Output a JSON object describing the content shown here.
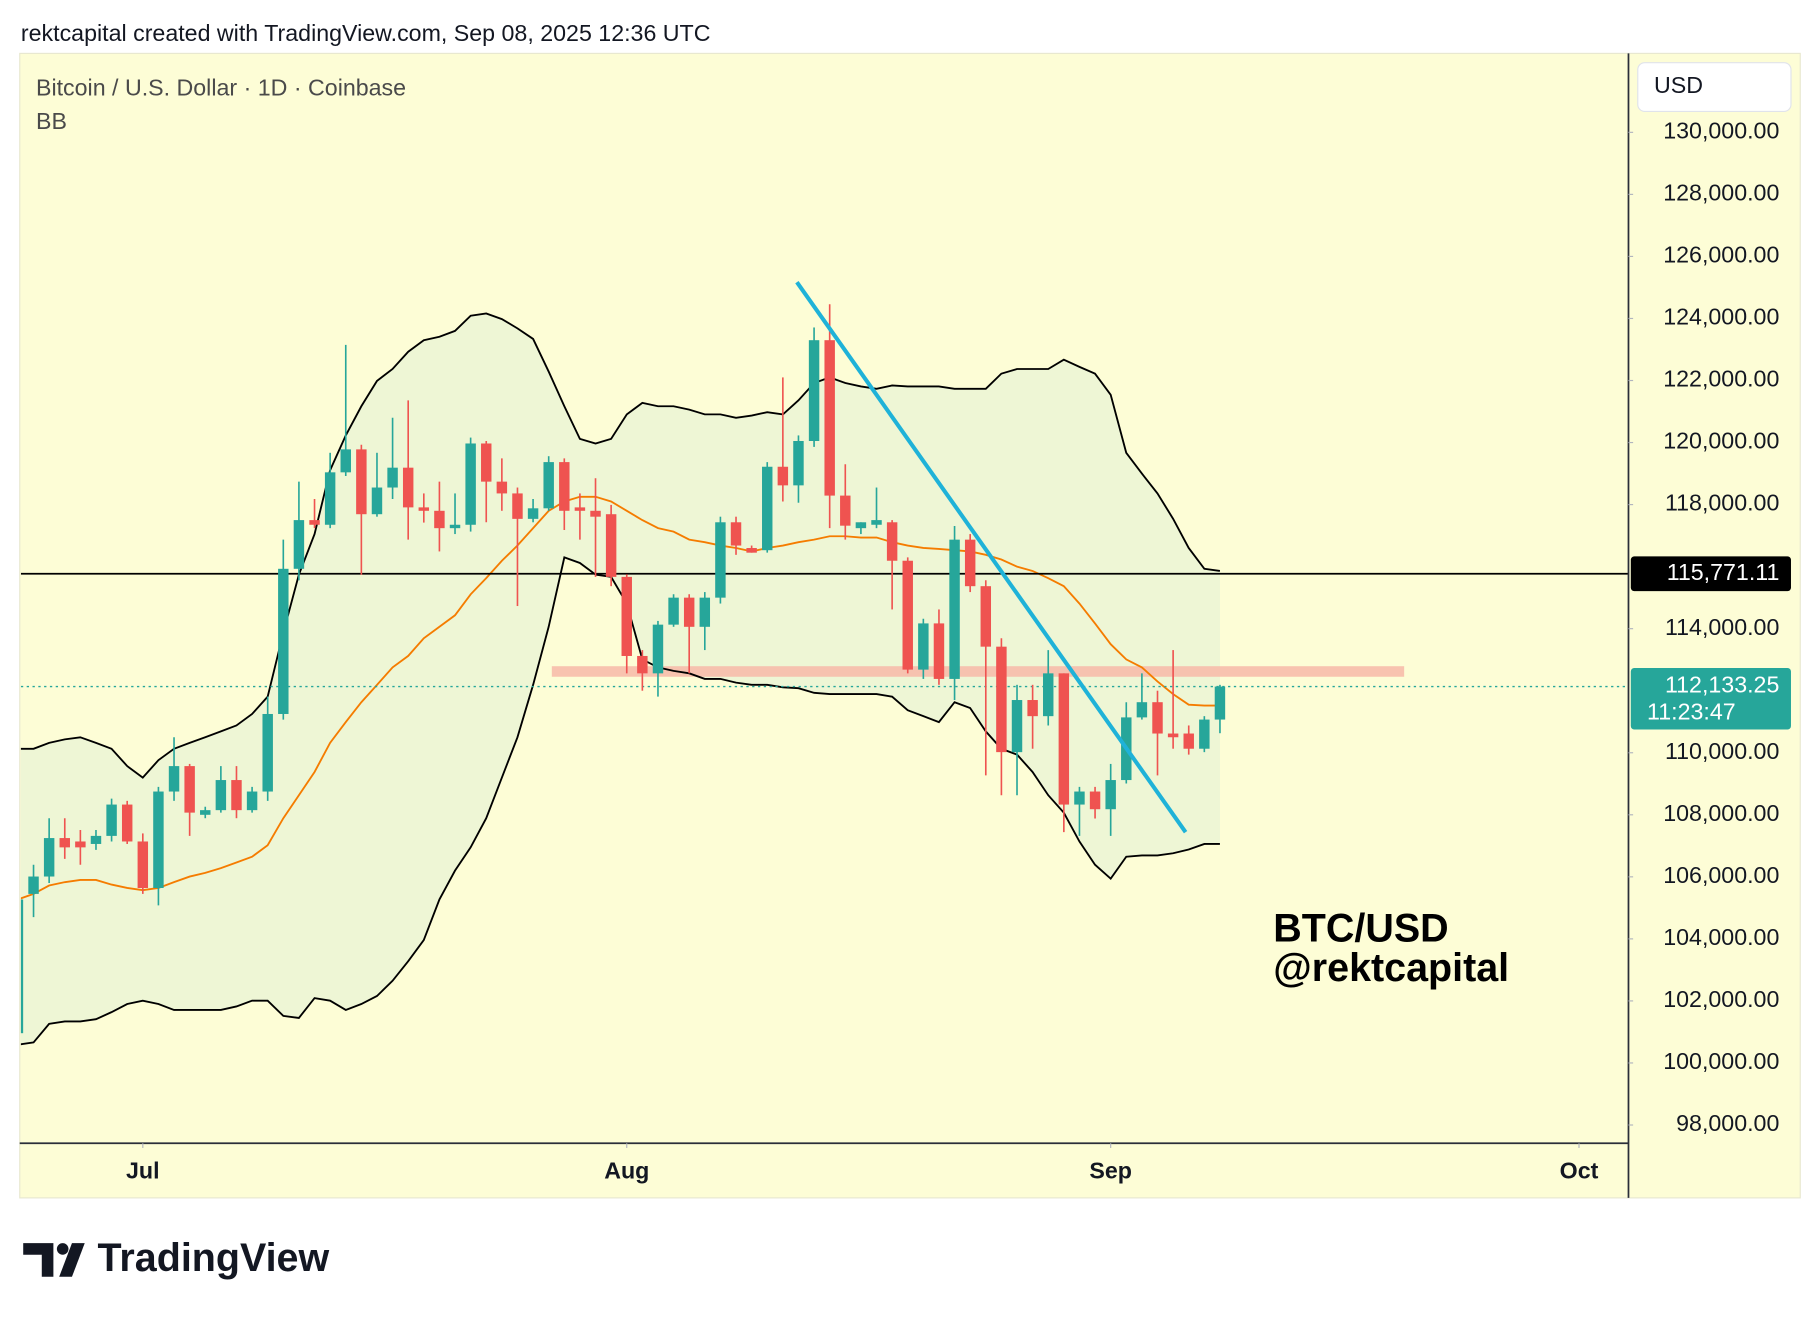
{
  "header": "rektcapital created with TradingView.com, Sep 08, 2025 12:36 UTC",
  "brand": "TradingView",
  "chart_data": {
    "type": "candlestick",
    "title": "Bitcoin / U.S. Dollar · 1D · Coinbase",
    "currency": "USD",
    "up_color": "#26a69a",
    "down_color": "#ef5350",
    "xlim": [
      -7.81,
      95.17
    ],
    "xticks": [
      {
        "value": 0,
        "label": "Jul"
      },
      {
        "value": 31,
        "label": "Aug"
      },
      {
        "value": 62,
        "label": "Sep"
      },
      {
        "value": 92,
        "label": "Oct"
      }
    ],
    "ylim": [
      97410,
      132545
    ],
    "yticks": [
      {
        "value": 130000,
        "label": "130,000.00"
      },
      {
        "value": 128000,
        "label": "128,000.00"
      },
      {
        "value": 126000,
        "label": "126,000.00"
      },
      {
        "value": 124000,
        "label": "124,000.00"
      },
      {
        "value": 122000,
        "label": "122,000.00"
      },
      {
        "value": 120000,
        "label": "120,000.00"
      },
      {
        "value": 118000,
        "label": "118,000.00"
      },
      {
        "value": 114000,
        "label": "114,000.00"
      },
      {
        "value": 110000,
        "label": "110,000.00"
      },
      {
        "value": 108000,
        "label": "108,000.00"
      },
      {
        "value": 106000,
        "label": "106,000.00"
      },
      {
        "value": 104000,
        "label": "104,000.00"
      },
      {
        "value": 102000,
        "label": "102,000.00"
      },
      {
        "value": 100000,
        "label": "100,000.00"
      },
      {
        "value": 98000,
        "label": "98,000.00"
      }
    ],
    "x": [
      -8,
      -7,
      -6,
      -5,
      -4,
      -3,
      -2,
      -1,
      0,
      1,
      2,
      3,
      4,
      5,
      6,
      7,
      8,
      9,
      10,
      11,
      12,
      13,
      14,
      15,
      16,
      17,
      18,
      19,
      20,
      21,
      22,
      23,
      24,
      25,
      26,
      27,
      28,
      29,
      30,
      31,
      32,
      33,
      34,
      35,
      36,
      37,
      38,
      39,
      40,
      41,
      42,
      43,
      44,
      45,
      46,
      47,
      48,
      49,
      50,
      51,
      52,
      53,
      54,
      55,
      56,
      57,
      58,
      59,
      60,
      61,
      62,
      63,
      64,
      65,
      66,
      67,
      68,
      69
    ],
    "open": [
      100960,
      105450,
      106010,
      107250,
      107140,
      107060,
      107320,
      108330,
      107140,
      105640,
      108750,
      109570,
      108000,
      108150,
      109120,
      108150,
      108750,
      111250,
      115930,
      117500,
      117350,
      119040,
      119780,
      117690,
      118550,
      119190,
      117910,
      117800,
      117240,
      117350,
      119970,
      118740,
      118360,
      117540,
      117880,
      119370,
      117910,
      117800,
      117690,
      115670,
      113120,
      112560,
      114130,
      115000,
      114060,
      115000,
      117430,
      116600,
      116530,
      119220,
      118620,
      120050,
      123300,
      118290,
      117240,
      117350,
      117430,
      116190,
      112680,
      114170,
      112380,
      116870,
      115370,
      113420,
      110020,
      111700,
      111180,
      112560,
      108330,
      108750,
      108180,
      109120,
      111140,
      111630,
      110620,
      110620,
      110130,
      111070
    ],
    "high": [
      105450,
      106390,
      107890,
      107890,
      107510,
      107510,
      108520,
      108450,
      107400,
      108900,
      110500,
      109640,
      108260,
      109570,
      109570,
      108900,
      111810,
      116870,
      118740,
      118180,
      119670,
      123150,
      119930,
      119670,
      120800,
      121360,
      118360,
      118740,
      118360,
      120160,
      120050,
      119490,
      118550,
      118180,
      119560,
      119490,
      118360,
      118850,
      117990,
      115750,
      113310,
      114250,
      115110,
      115110,
      115180,
      117610,
      117610,
      116680,
      119370,
      122100,
      120230,
      123710,
      124460,
      119300,
      117430,
      118550,
      117500,
      116300,
      114320,
      114620,
      117310,
      117050,
      115560,
      113690,
      112190,
      112190,
      113310,
      112560,
      108900,
      108900,
      109640,
      111630,
      112560,
      112000,
      113310,
      110880,
      111180,
      112190
    ],
    "low": [
      99900,
      104700,
      105800,
      106580,
      106390,
      106870,
      107140,
      107060,
      105450,
      105080,
      108450,
      107320,
      107890,
      108070,
      107890,
      108070,
      108450,
      111070,
      115560,
      117240,
      117240,
      118920,
      115740,
      117610,
      118180,
      116870,
      117420,
      116490,
      117050,
      117130,
      117430,
      117800,
      114730,
      117430,
      117800,
      117180,
      116870,
      115670,
      115370,
      112560,
      112000,
      111810,
      114060,
      112560,
      113310,
      114810,
      116380,
      116450,
      116450,
      118100,
      118060,
      119860,
      117240,
      116870,
      117050,
      117240,
      114620,
      112560,
      112380,
      112190,
      111700,
      115180,
      109270,
      108630,
      108630,
      110130,
      110880,
      107440,
      107320,
      107880,
      107320,
      109010,
      111070,
      109270,
      110130,
      109940,
      110020,
      110630
    ],
    "close": [
      105270,
      106010,
      107250,
      106950,
      106950,
      107320,
      108330,
      107140,
      105640,
      108750,
      109570,
      108070,
      108150,
      109120,
      108150,
      108750,
      111250,
      115930,
      117500,
      117350,
      119040,
      119780,
      117690,
      118550,
      119190,
      117910,
      117800,
      117240,
      117350,
      119970,
      118740,
      118360,
      117540,
      117880,
      119370,
      117800,
      117800,
      117610,
      115670,
      113120,
      112560,
      114130,
      115000,
      114060,
      115000,
      117430,
      116680,
      116450,
      119220,
      118620,
      120050,
      123300,
      118290,
      117320,
      117430,
      117500,
      116190,
      112680,
      114170,
      112380,
      116870,
      115370,
      113420,
      110020,
      111700,
      111180,
      112560,
      108330,
      108750,
      108180,
      109120,
      111140,
      111630,
      110620,
      110500,
      110130,
      111070,
      112133.25
    ],
    "bollinger": {
      "label": "BB",
      "band_color": "#000000",
      "basis_color": "#f57c00",
      "fill": "#eef6d5",
      "upper": [
        110130,
        110130,
        110320,
        110430,
        110500,
        110320,
        110130,
        109570,
        109200,
        109760,
        110130,
        110320,
        110500,
        110690,
        110880,
        111250,
        111810,
        113870,
        115740,
        117050,
        119110,
        120230,
        121170,
        121990,
        122370,
        122930,
        123300,
        123410,
        123600,
        124090,
        124160,
        123980,
        123680,
        123340,
        122290,
        121170,
        120120,
        119970,
        120120,
        120910,
        121280,
        121170,
        121170,
        121060,
        120910,
        120910,
        120800,
        120870,
        120980,
        120910,
        121360,
        121920,
        122100,
        121920,
        121810,
        121730,
        121840,
        121810,
        121810,
        121810,
        121730,
        121730,
        121730,
        122220,
        122370,
        122370,
        122370,
        122670,
        122440,
        122220,
        121540,
        119670,
        119000,
        118360,
        117540,
        116600,
        115930,
        115860
      ],
      "basis": [
        105270,
        105450,
        105720,
        105830,
        105900,
        105900,
        105750,
        105640,
        105570,
        105640,
        105830,
        106010,
        106130,
        106280,
        106460,
        106650,
        107020,
        107890,
        108630,
        109380,
        110320,
        110990,
        111630,
        112190,
        112750,
        113120,
        113690,
        114060,
        114430,
        115110,
        115630,
        116190,
        116680,
        117240,
        117800,
        118100,
        118250,
        118250,
        118100,
        117800,
        117500,
        117240,
        117130,
        116870,
        116790,
        116680,
        116600,
        116490,
        116600,
        116680,
        116790,
        116870,
        116980,
        116980,
        116940,
        116940,
        116790,
        116680,
        116600,
        116570,
        116530,
        116490,
        116380,
        116230,
        116000,
        115860,
        115630,
        115370,
        114810,
        114170,
        113500,
        113010,
        112750,
        112300,
        111890,
        111550,
        111520,
        111520
      ],
      "lower": [
        100590,
        100660,
        101260,
        101340,
        101340,
        101410,
        101640,
        101900,
        102010,
        101900,
        101710,
        101710,
        101710,
        101710,
        101820,
        102010,
        102010,
        101520,
        101450,
        102090,
        102010,
        101710,
        101900,
        102160,
        102650,
        103280,
        103960,
        105270,
        106200,
        106950,
        107890,
        109200,
        110500,
        112190,
        114060,
        116300,
        116120,
        115740,
        115670,
        114810,
        113010,
        112750,
        112640,
        112560,
        112380,
        112380,
        112260,
        112190,
        112190,
        112110,
        112080,
        111930,
        111890,
        111890,
        111890,
        111890,
        111810,
        111370,
        111180,
        110990,
        111630,
        111440,
        110690,
        110130,
        109940,
        109380,
        108630,
        108070,
        107140,
        106390,
        105940,
        106650,
        106690,
        106690,
        106760,
        106880,
        107060,
        107060
      ]
    },
    "price_line": {
      "value": 115771.11,
      "label": "115,771.11",
      "color": "#000000"
    },
    "last_price": {
      "value": 112133.25,
      "label": "112,133.25",
      "countdown": "11:23:47",
      "color": "#26a69a"
    },
    "trendline": {
      "x": [
        41.9,
        66.8
      ],
      "y": [
        125170,
        107440
      ],
      "color": "#1fb2d8"
    },
    "zone": {
      "x": [
        26.2,
        80.8
      ],
      "y": [
        112450,
        112790
      ],
      "color": "#f7b8a8"
    },
    "annotation": [
      "BTC/USD",
      "@rektcapital"
    ]
  }
}
